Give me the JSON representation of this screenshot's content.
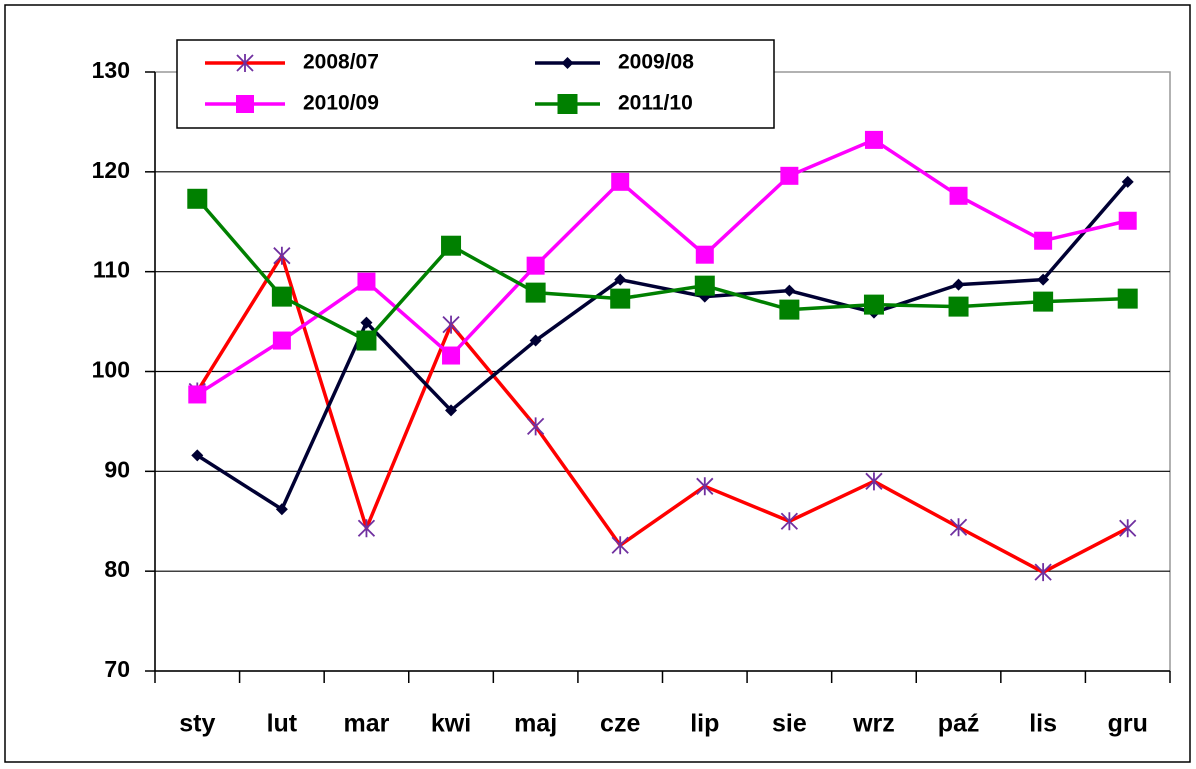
{
  "chart_data": {
    "type": "line",
    "categories": [
      "sty",
      "lut",
      "mar",
      "kwi",
      "maj",
      "cze",
      "lip",
      "sie",
      "wrz",
      "paź",
      "lis",
      "gru"
    ],
    "series": [
      {
        "name": "2008/07",
        "color": "#ff0000",
        "marker": "asterisk",
        "marker_color": "#7030a0",
        "values": [
          98.0,
          111.6,
          84.3,
          104.7,
          94.5,
          82.6,
          88.5,
          85.0,
          89.0,
          84.4,
          79.9,
          84.3
        ]
      },
      {
        "name": "2009/08",
        "color": "#000033",
        "marker": "diamond",
        "marker_color": "#000033",
        "values": [
          91.6,
          86.2,
          104.9,
          96.1,
          103.1,
          109.2,
          107.5,
          108.1,
          105.9,
          108.7,
          109.2,
          119.0
        ]
      },
      {
        "name": "2010/09",
        "color": "#ff00ff",
        "marker": "square",
        "marker_color": "#ff00ff",
        "values": [
          97.7,
          103.1,
          109.0,
          101.6,
          110.6,
          119.0,
          111.7,
          119.6,
          123.2,
          117.6,
          113.1,
          115.1
        ]
      },
      {
        "name": "2011/10",
        "color": "#008000",
        "marker": "square",
        "marker_color": "#008000",
        "values": [
          117.3,
          107.5,
          103.1,
          112.6,
          107.9,
          107.3,
          108.6,
          106.2,
          106.7,
          106.5,
          107.0,
          107.3
        ]
      }
    ],
    "ylim": [
      70,
      130
    ],
    "yticks": [
      70,
      80,
      90,
      100,
      110,
      120,
      130
    ],
    "grid": true,
    "legend": "top"
  }
}
